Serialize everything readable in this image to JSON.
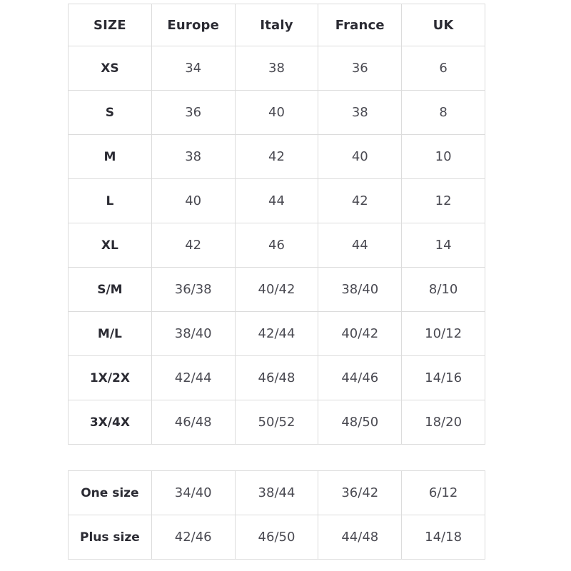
{
  "colors": {
    "background": "#ffffff",
    "border": "#dcdcdc",
    "header_text": "#2b2b33",
    "cell_text": "#4a4a52"
  },
  "size_chart": {
    "headers": [
      "SIZE",
      "Europe",
      "Italy",
      "France",
      "UK"
    ],
    "rows": [
      [
        "XS",
        "34",
        "38",
        "36",
        "6"
      ],
      [
        "S",
        "36",
        "40",
        "38",
        "8"
      ],
      [
        "M",
        "38",
        "42",
        "40",
        "10"
      ],
      [
        "L",
        "40",
        "44",
        "42",
        "12"
      ],
      [
        "XL",
        "42",
        "46",
        "44",
        "14"
      ],
      [
        "S/M",
        "36/38",
        "40/42",
        "38/40",
        "8/10"
      ],
      [
        "M/L",
        "38/40",
        "42/44",
        "40/42",
        "10/12"
      ],
      [
        "1X/2X",
        "42/44",
        "46/48",
        "44/46",
        "14/16"
      ],
      [
        "3X/4X",
        "46/48",
        "50/52",
        "48/50",
        "18/20"
      ]
    ]
  },
  "special_sizes": {
    "rows": [
      [
        "One size",
        "34/40",
        "38/44",
        "36/42",
        "6/12"
      ],
      [
        "Plus size",
        "42/46",
        "46/50",
        "44/48",
        "14/18"
      ]
    ]
  }
}
